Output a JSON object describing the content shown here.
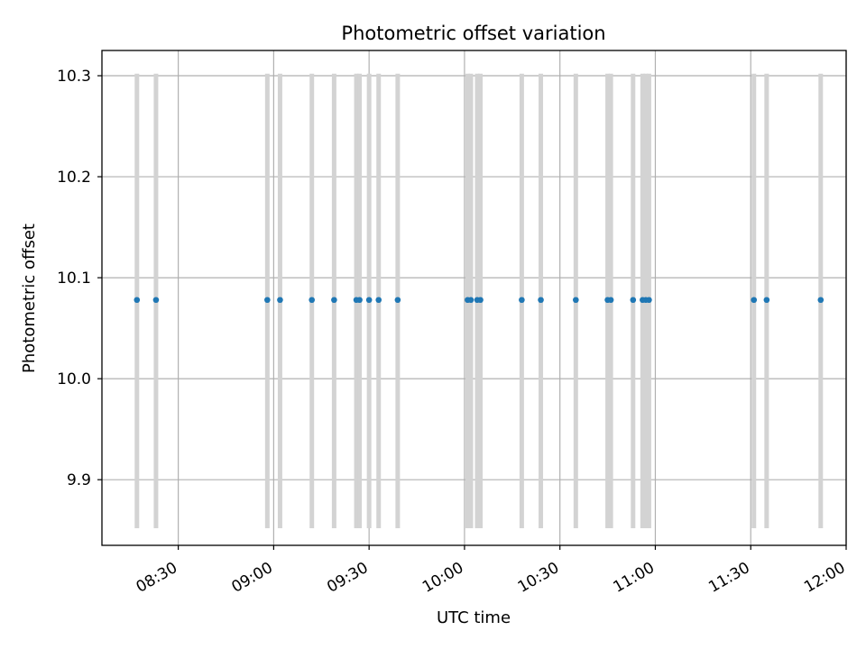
{
  "chart_data": {
    "type": "scatter",
    "title": "Photometric offset variation",
    "xlabel": "UTC time",
    "ylabel": "Photometric offset",
    "x_ticks": [
      "08:30",
      "09:00",
      "09:30",
      "10:00",
      "10:30",
      "11:00",
      "11:30",
      "12:00"
    ],
    "y_ticks": [
      "9.9",
      "10.0",
      "10.1",
      "10.2",
      "10.3"
    ],
    "xlim": [
      "08:06",
      "12:00"
    ],
    "ylim": [
      9.835,
      10.325
    ],
    "grid": true,
    "error_bars": {
      "low": 9.852,
      "high": 10.302,
      "color": "#d3d3d3"
    },
    "marker_color": "#1f77b4",
    "series": [
      {
        "x": [
          "08:17",
          "08:23",
          "08:58",
          "09:02",
          "09:12",
          "09:19",
          "09:26",
          "09:27",
          "09:30",
          "09:33",
          "09:39",
          "10:01",
          "10:02",
          "10:04",
          "10:05",
          "10:18",
          "10:24",
          "10:35",
          "10:45",
          "10:46",
          "10:53",
          "10:56",
          "10:57",
          "10:58",
          "11:31",
          "11:35",
          "11:52"
        ],
        "y": [
          10.078,
          10.078,
          10.078,
          10.078,
          10.078,
          10.078,
          10.078,
          10.078,
          10.078,
          10.078,
          10.078,
          10.078,
          10.078,
          10.078,
          10.078,
          10.078,
          10.078,
          10.078,
          10.078,
          10.078,
          10.078,
          10.078,
          10.078,
          10.078,
          10.078,
          10.078,
          10.078
        ]
      }
    ]
  }
}
